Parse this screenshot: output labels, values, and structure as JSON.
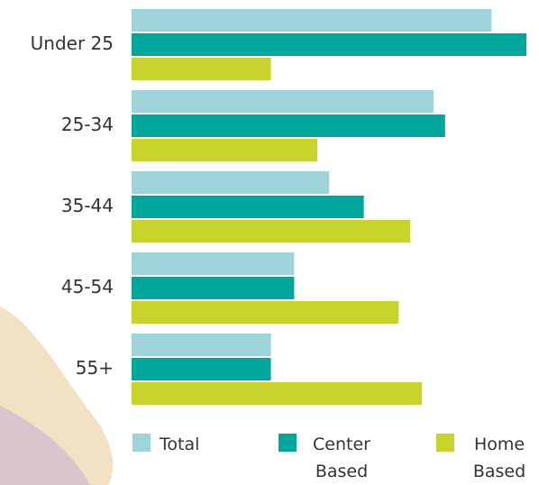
{
  "chart_data": {
    "type": "hbar",
    "categories": [
      "Under 25",
      "25-34",
      "35-44",
      "45-54",
      "55+"
    ],
    "series": [
      {
        "name": "Total",
        "color": "#9ed3da",
        "values": [
          31,
          26,
          17,
          14,
          12
        ]
      },
      {
        "name": "Center Based",
        "color": "#00a79d",
        "values": [
          34,
          27,
          20,
          14,
          12
        ]
      },
      {
        "name": "Home Based",
        "color": "#c8d42c",
        "values": [
          12,
          16,
          24,
          23,
          25
        ]
      }
    ],
    "xlim": [
      0,
      34
    ]
  }
}
